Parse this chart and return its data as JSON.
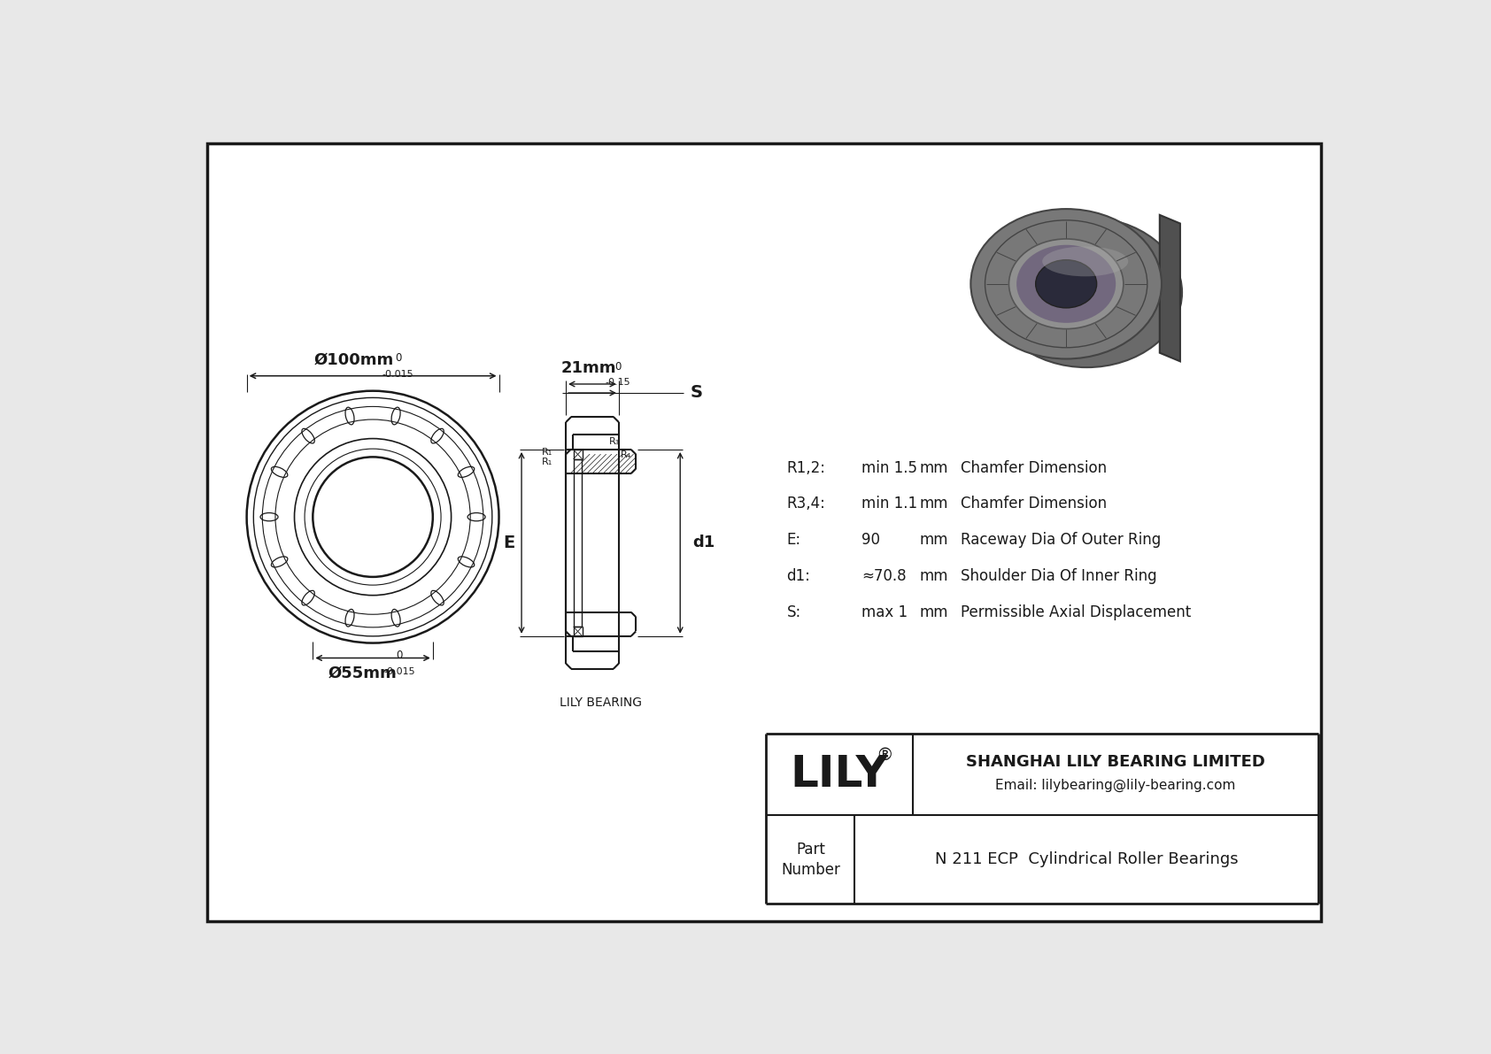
{
  "bg_color": "#e8e8e8",
  "drawing_bg": "#ffffff",
  "line_color": "#1a1a1a",
  "company": "SHANGHAI LILY BEARING LIMITED",
  "email": "Email: lilybearing@lily-bearing.com",
  "part_number": "N 211 ECP  Cylindrical Roller Bearings",
  "specs": [
    [
      "R1,2:",
      "min 1.5",
      "mm",
      "Chamfer Dimension"
    ],
    [
      "R3,4:",
      "min 1.1",
      "mm",
      "Chamfer Dimension"
    ],
    [
      "E:",
      "90",
      "mm",
      "Raceway Dia Of Outer Ring"
    ],
    [
      "d1:",
      "≈70.8",
      "mm",
      "Shoulder Dia Of Inner Ring"
    ],
    [
      "S:",
      "max 1",
      "mm",
      "Permissible Axial Displacement"
    ]
  ]
}
